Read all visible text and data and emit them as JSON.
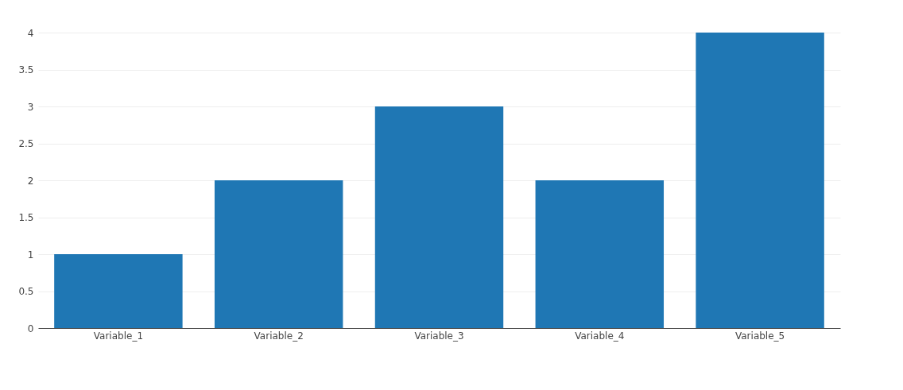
{
  "chart_data": {
    "type": "bar",
    "categories": [
      "Variable_1",
      "Variable_2",
      "Variable_3",
      "Variable_4",
      "Variable_5"
    ],
    "values": [
      1,
      2,
      3,
      2,
      4
    ],
    "color": "#1f77b4",
    "ylim": [
      0,
      4
    ],
    "yticks": [
      0,
      0.5,
      1,
      1.5,
      2,
      2.5,
      3,
      3.5,
      4
    ],
    "grid": "y"
  }
}
